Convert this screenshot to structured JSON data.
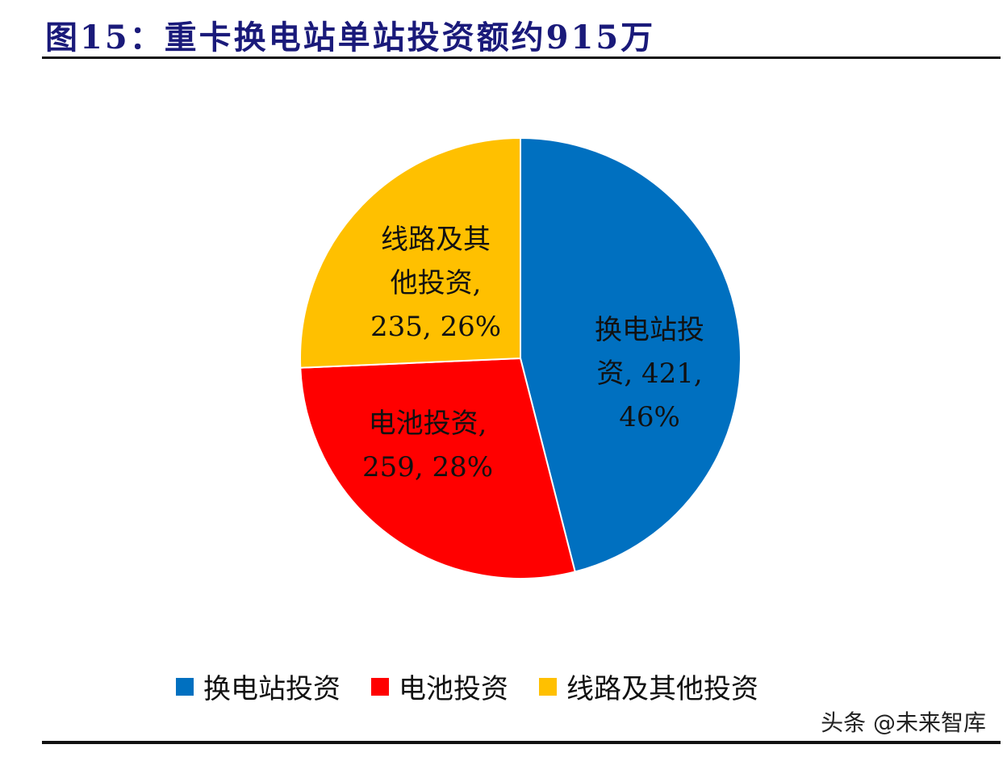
{
  "title": "图15：重卡换电站单站投资额约915万",
  "watermark": "头条 @未来智库",
  "chart_data": {
    "type": "pie",
    "title": "图15：重卡换电站单站投资额约915万",
    "start": "top",
    "direction": "clockwise",
    "legend_position": "bottom",
    "slices": [
      {
        "name": "换电站投资",
        "value": 421,
        "percent": "46%",
        "color": "#0070C0",
        "label": "换电站投\n资, 421,\n46%"
      },
      {
        "name": "电池投资",
        "value": 259,
        "percent": "28%",
        "color": "#FF0000",
        "label": "电池投资,\n259, 28%"
      },
      {
        "name": "线路及其他投资",
        "value": 235,
        "percent": "26%",
        "color": "#FFC000",
        "label": "线路及其\n他投资,\n235, 26%"
      }
    ]
  }
}
